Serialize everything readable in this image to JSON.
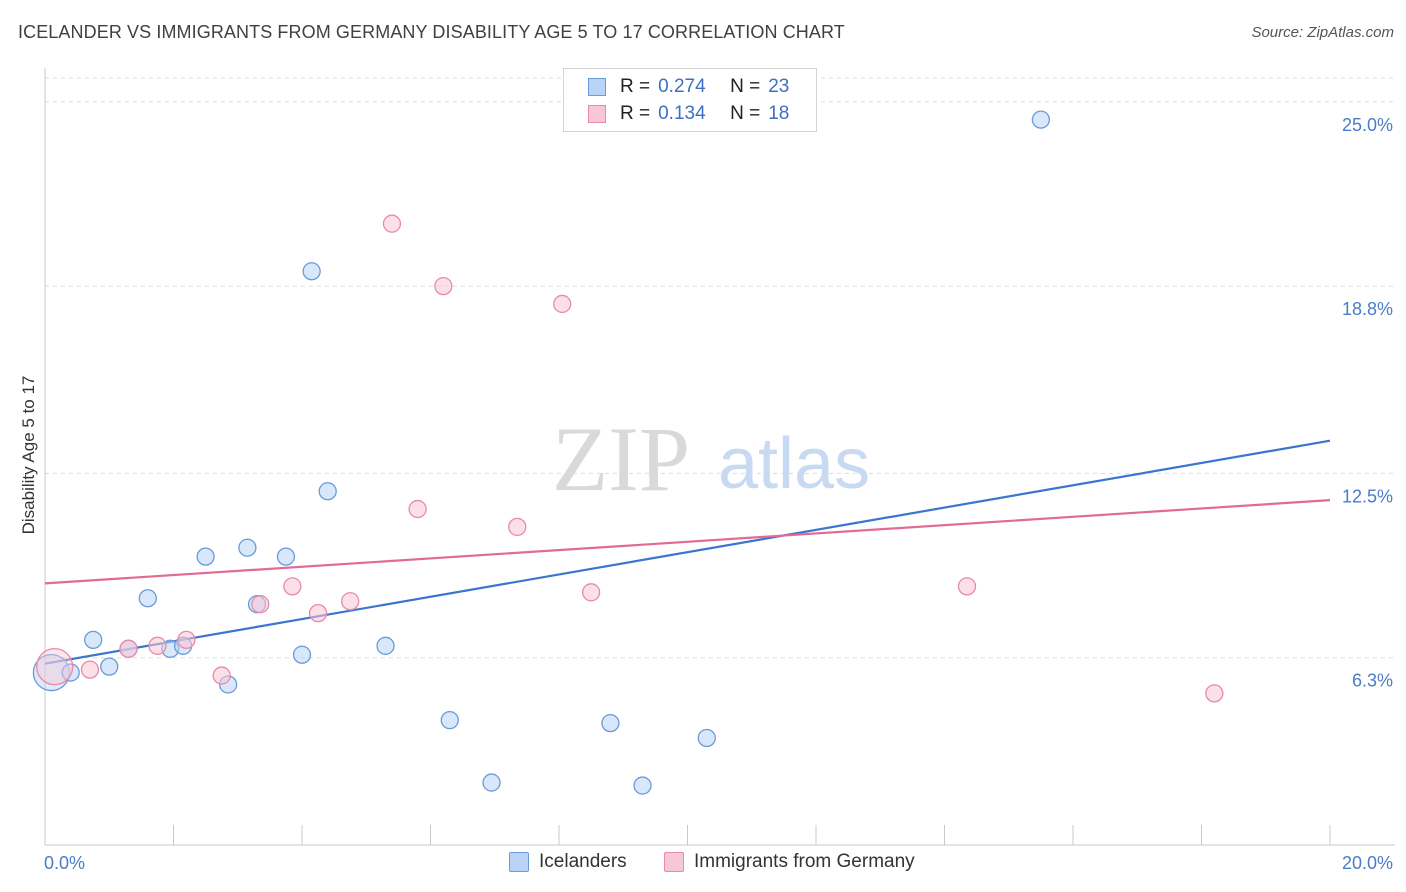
{
  "title": "ICELANDER VS IMMIGRANTS FROM GERMANY DISABILITY AGE 5 TO 17 CORRELATION CHART",
  "source": "Source: ZipAtlas.com",
  "watermark": {
    "zip": "ZIP",
    "atlas": "atlas"
  },
  "legend_top": {
    "rows": [
      {
        "r_label": "R =",
        "r_value": "0.274",
        "n_label": "N =",
        "n_value": "23"
      },
      {
        "r_label": "R =",
        "r_value": "0.134",
        "n_label": "N =",
        "n_value": "18"
      }
    ]
  },
  "colors": {
    "blue_fill": "#b8d3f5",
    "blue_stroke": "#6a9bd8",
    "blue_line": "#3a75d0",
    "pink_fill": "#f8c7d6",
    "pink_stroke": "#e98aa8",
    "pink_line": "#e06b95",
    "grid": "#dcdcdc",
    "tick_text": "#4a7cc7"
  },
  "chart_data": {
    "type": "scatter",
    "title": "ICELANDER VS IMMIGRANTS FROM GERMANY DISABILITY AGE 5 TO 17 CORRELATION CHART",
    "xlabel": "",
    "ylabel": "Disability Age 5 to 17",
    "xlim": [
      0,
      20
    ],
    "ylim": [
      0,
      25.8
    ],
    "x_tick_labels": [
      "0.0%",
      "20.0%"
    ],
    "y_ticks": [
      6.3,
      12.5,
      18.8,
      25.0
    ],
    "y_tick_labels": [
      "6.3%",
      "12.5%",
      "18.8%",
      "25.0%"
    ],
    "grid": true,
    "legend_placement": "top-center",
    "series": [
      {
        "name": "Icelanders",
        "r": 0.274,
        "n": 23,
        "trend": {
          "x": [
            0,
            20
          ],
          "y": [
            6.1,
            13.6
          ]
        },
        "points": [
          {
            "x": 0.1,
            "y": 5.8,
            "big": true
          },
          {
            "x": 0.4,
            "y": 5.8
          },
          {
            "x": 0.75,
            "y": 6.9
          },
          {
            "x": 1.0,
            "y": 6.0
          },
          {
            "x": 1.3,
            "y": 6.6
          },
          {
            "x": 1.6,
            "y": 8.3
          },
          {
            "x": 1.95,
            "y": 6.6
          },
          {
            "x": 2.15,
            "y": 6.7
          },
          {
            "x": 2.5,
            "y": 9.7
          },
          {
            "x": 2.85,
            "y": 5.4
          },
          {
            "x": 3.15,
            "y": 10.0
          },
          {
            "x": 3.3,
            "y": 8.1
          },
          {
            "x": 3.75,
            "y": 9.7
          },
          {
            "x": 4.0,
            "y": 6.4
          },
          {
            "x": 4.15,
            "y": 19.3
          },
          {
            "x": 4.4,
            "y": 11.9
          },
          {
            "x": 5.3,
            "y": 6.7
          },
          {
            "x": 6.3,
            "y": 4.2
          },
          {
            "x": 6.95,
            "y": 2.1
          },
          {
            "x": 8.8,
            "y": 4.1
          },
          {
            "x": 9.3,
            "y": 2.0
          },
          {
            "x": 10.3,
            "y": 3.6
          },
          {
            "x": 15.5,
            "y": 24.4
          }
        ]
      },
      {
        "name": "Immigrants from Germany",
        "r": 0.134,
        "n": 18,
        "trend": {
          "x": [
            0,
            20
          ],
          "y": [
            8.8,
            11.6
          ]
        },
        "points": [
          {
            "x": 0.15,
            "y": 6.0,
            "big": true
          },
          {
            "x": 0.7,
            "y": 5.9
          },
          {
            "x": 1.3,
            "y": 6.6
          },
          {
            "x": 1.75,
            "y": 6.7
          },
          {
            "x": 2.2,
            "y": 6.9
          },
          {
            "x": 2.75,
            "y": 5.7
          },
          {
            "x": 3.35,
            "y": 8.1
          },
          {
            "x": 3.85,
            "y": 8.7
          },
          {
            "x": 4.25,
            "y": 7.8
          },
          {
            "x": 4.75,
            "y": 8.2
          },
          {
            "x": 5.4,
            "y": 20.9
          },
          {
            "x": 5.8,
            "y": 11.3
          },
          {
            "x": 6.2,
            "y": 18.8
          },
          {
            "x": 7.35,
            "y": 10.7
          },
          {
            "x": 8.05,
            "y": 18.2
          },
          {
            "x": 8.5,
            "y": 8.5
          },
          {
            "x": 14.35,
            "y": 8.7
          },
          {
            "x": 18.2,
            "y": 5.1
          }
        ]
      }
    ]
  }
}
